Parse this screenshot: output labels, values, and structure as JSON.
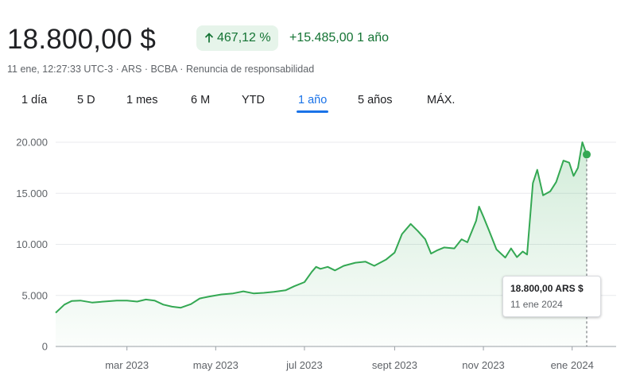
{
  "header": {
    "price": "18.800,00 $",
    "change_pct": "467,12 %",
    "change_abs": "+15.485,00 1 año",
    "meta": {
      "timestamp": "11 ene, 12:27:33 UTC-3",
      "currency": "ARS",
      "exchange": "BCBA",
      "disclaimer": "Renuncia de responsabilidad"
    }
  },
  "tabs": [
    {
      "label": "1 día"
    },
    {
      "label": "5 D"
    },
    {
      "label": "1 mes"
    },
    {
      "label": "6 M"
    },
    {
      "label": "YTD"
    },
    {
      "label": "1 año",
      "active": true
    },
    {
      "label": "5 años"
    },
    {
      "label": "MÁX."
    }
  ],
  "tooltip": {
    "price": "18.800,00 ARS $",
    "date": "11 ene 2024"
  },
  "colors": {
    "positive": "#137333",
    "line": "#34a853",
    "accent": "#1a73e8"
  },
  "chart_data": {
    "type": "area",
    "ylim": [
      0,
      20000
    ],
    "yticks": [
      0,
      5000,
      10000,
      15000,
      20000
    ],
    "ytick_labels": [
      "0",
      "5.000",
      "10.000",
      "15.000",
      "20.000"
    ],
    "xtick_labels": [
      "mar 2023",
      "may 2023",
      "jul 2023",
      "sept 2023",
      "nov 2023",
      "ene 2024"
    ],
    "xticks": [
      "2023-03-01",
      "2023-05-01",
      "2023-07-01",
      "2023-09-01",
      "2023-11-01",
      "2024-01-01"
    ],
    "xlim": [
      "2023-01-11",
      "2024-01-11"
    ],
    "series": [
      {
        "points": [
          [
            "2023-01-11",
            3300
          ],
          [
            "2023-01-17",
            4100
          ],
          [
            "2023-01-22",
            4450
          ],
          [
            "2023-01-28",
            4500
          ],
          [
            "2023-02-05",
            4300
          ],
          [
            "2023-02-13",
            4400
          ],
          [
            "2023-02-22",
            4500
          ],
          [
            "2023-03-01",
            4500
          ],
          [
            "2023-03-08",
            4400
          ],
          [
            "2023-03-14",
            4600
          ],
          [
            "2023-03-20",
            4500
          ],
          [
            "2023-03-26",
            4100
          ],
          [
            "2023-04-01",
            3900
          ],
          [
            "2023-04-07",
            3800
          ],
          [
            "2023-04-14",
            4150
          ],
          [
            "2023-04-20",
            4700
          ],
          [
            "2023-04-27",
            4900
          ],
          [
            "2023-05-05",
            5100
          ],
          [
            "2023-05-13",
            5200
          ],
          [
            "2023-05-20",
            5400
          ],
          [
            "2023-05-27",
            5200
          ],
          [
            "2023-06-03",
            5250
          ],
          [
            "2023-06-10",
            5350
          ],
          [
            "2023-06-18",
            5500
          ],
          [
            "2023-06-24",
            5900
          ],
          [
            "2023-07-01",
            6300
          ],
          [
            "2023-07-06",
            7300
          ],
          [
            "2023-07-09",
            7800
          ],
          [
            "2023-07-12",
            7600
          ],
          [
            "2023-07-17",
            7800
          ],
          [
            "2023-07-22",
            7450
          ],
          [
            "2023-07-28",
            7900
          ],
          [
            "2023-08-05",
            8200
          ],
          [
            "2023-08-12",
            8300
          ],
          [
            "2023-08-18",
            7900
          ],
          [
            "2023-08-26",
            8500
          ],
          [
            "2023-09-01",
            9200
          ],
          [
            "2023-09-06",
            11000
          ],
          [
            "2023-09-12",
            12000
          ],
          [
            "2023-09-17",
            11300
          ],
          [
            "2023-09-22",
            10500
          ],
          [
            "2023-09-26",
            9100
          ],
          [
            "2023-09-30",
            9400
          ],
          [
            "2023-10-05",
            9700
          ],
          [
            "2023-10-12",
            9600
          ],
          [
            "2023-10-17",
            10500
          ],
          [
            "2023-10-21",
            10200
          ],
          [
            "2023-10-27",
            12300
          ],
          [
            "2023-10-29",
            13700
          ],
          [
            "2023-11-01",
            12700
          ],
          [
            "2023-11-05",
            11300
          ],
          [
            "2023-11-10",
            9500
          ],
          [
            "2023-11-16",
            8700
          ],
          [
            "2023-11-20",
            9600
          ],
          [
            "2023-11-24",
            8750
          ],
          [
            "2023-11-28",
            9300
          ],
          [
            "2023-12-01",
            9000
          ],
          [
            "2023-12-05",
            16000
          ],
          [
            "2023-12-08",
            17300
          ],
          [
            "2023-12-12",
            14800
          ],
          [
            "2023-12-17",
            15200
          ],
          [
            "2023-12-21",
            16100
          ],
          [
            "2023-12-26",
            18200
          ],
          [
            "2023-12-30",
            18000
          ],
          [
            "2024-01-02",
            16700
          ],
          [
            "2024-01-05",
            17500
          ],
          [
            "2024-01-08",
            20000
          ],
          [
            "2024-01-11",
            18800
          ]
        ]
      }
    ]
  }
}
